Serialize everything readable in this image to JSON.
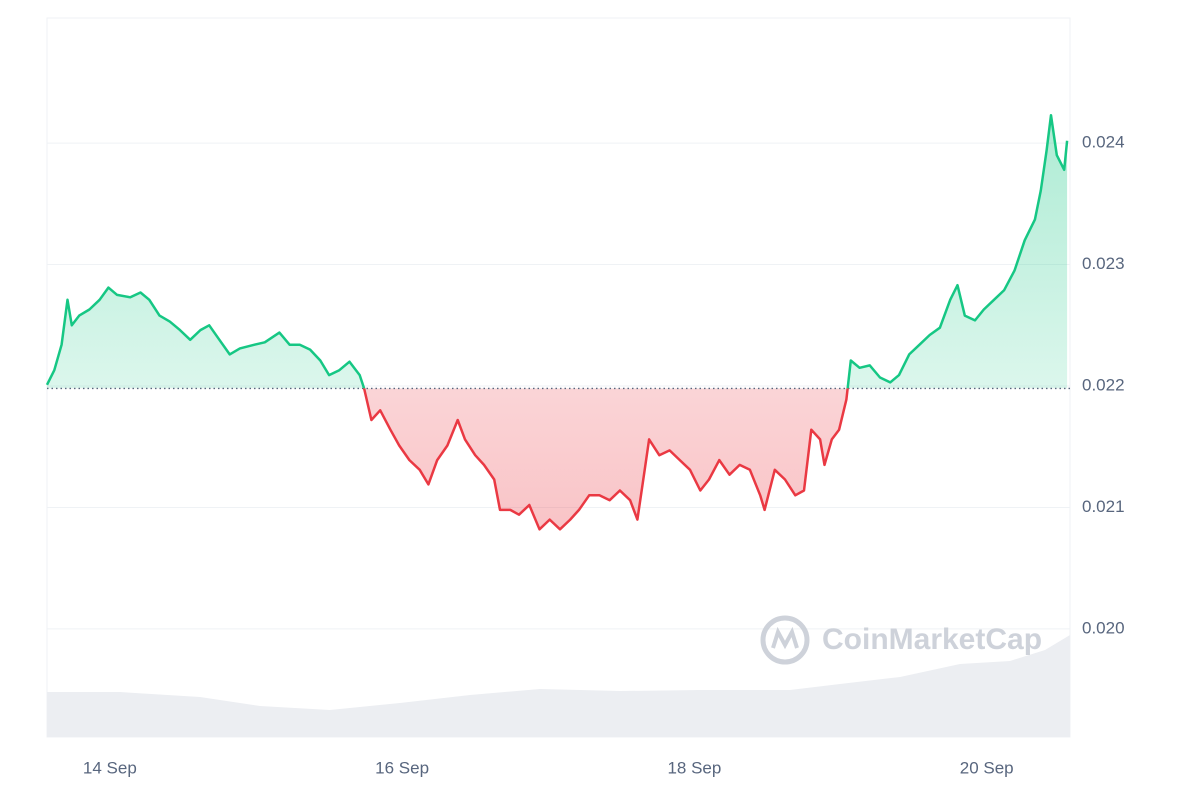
{
  "chart_data": {
    "type": "line",
    "x": [
      13.57,
      13.62,
      13.67,
      13.71,
      13.74,
      13.79,
      13.86,
      13.93,
      13.99,
      14.05,
      14.14,
      14.21,
      14.27,
      14.34,
      14.41,
      14.48,
      14.55,
      14.62,
      14.68,
      14.75,
      14.82,
      14.89,
      14.99,
      15.06,
      15.16,
      15.23,
      15.3,
      15.37,
      15.44,
      15.5,
      15.57,
      15.64,
      15.71,
      15.74,
      15.79,
      15.85,
      15.92,
      15.98,
      16.05,
      16.12,
      16.18,
      16.24,
      16.31,
      16.38,
      16.43,
      16.5,
      16.56,
      16.63,
      16.67,
      16.74,
      16.8,
      16.87,
      16.94,
      17.01,
      17.08,
      17.15,
      17.21,
      17.28,
      17.35,
      17.42,
      17.49,
      17.56,
      17.61,
      17.66,
      17.69,
      17.76,
      17.83,
      17.9,
      17.97,
      18.04,
      18.1,
      18.17,
      18.24,
      18.31,
      18.38,
      18.45,
      18.48,
      18.55,
      18.62,
      18.69,
      18.75,
      18.8,
      18.86,
      18.89,
      18.94,
      18.99,
      19.04,
      19.07,
      19.13,
      19.2,
      19.27,
      19.34,
      19.4,
      19.47,
      19.54,
      19.61,
      19.68,
      19.75,
      19.8,
      19.85,
      19.92,
      19.98,
      20.05,
      20.12,
      20.19,
      20.26,
      20.33,
      20.37,
      20.41,
      20.44,
      20.48,
      20.53,
      20.55
    ],
    "values": [
      0.02201,
      0.02213,
      0.02234,
      0.02271,
      0.0225,
      0.02258,
      0.02263,
      0.02271,
      0.02281,
      0.02275,
      0.02273,
      0.02277,
      0.02271,
      0.02258,
      0.02253,
      0.02246,
      0.02238,
      0.02246,
      0.0225,
      0.02238,
      0.02226,
      0.02231,
      0.02234,
      0.02236,
      0.02244,
      0.02234,
      0.02234,
      0.0223,
      0.02221,
      0.02209,
      0.02213,
      0.0222,
      0.02209,
      0.02198,
      0.02172,
      0.0218,
      0.02164,
      0.02151,
      0.02139,
      0.02131,
      0.02119,
      0.02139,
      0.02151,
      0.02172,
      0.02156,
      0.02143,
      0.02135,
      0.02123,
      0.02098,
      0.02098,
      0.02094,
      0.02102,
      0.02082,
      0.0209,
      0.02082,
      0.0209,
      0.02098,
      0.0211,
      0.0211,
      0.02106,
      0.02114,
      0.02106,
      0.0209,
      0.02131,
      0.02156,
      0.02143,
      0.02147,
      0.02139,
      0.02131,
      0.02114,
      0.02123,
      0.02139,
      0.02127,
      0.02135,
      0.02131,
      0.0211,
      0.02098,
      0.02131,
      0.02123,
      0.0211,
      0.02114,
      0.02164,
      0.02156,
      0.02135,
      0.02156,
      0.02164,
      0.02189,
      0.02221,
      0.02215,
      0.02217,
      0.02207,
      0.02203,
      0.02209,
      0.02226,
      0.02234,
      0.02242,
      0.02248,
      0.02271,
      0.02283,
      0.02258,
      0.02254,
      0.02263,
      0.02271,
      0.02279,
      0.02295,
      0.0232,
      0.02337,
      0.02361,
      0.02394,
      0.02423,
      0.0239,
      0.02378,
      0.02402
    ],
    "baseline": 0.02198,
    "up_color": "#16c784",
    "down_color": "#ea3943",
    "xlim": [
      13.57,
      20.57
    ],
    "xticks": [
      {
        "value": 14,
        "label": "14 Sep"
      },
      {
        "value": 16,
        "label": "16 Sep"
      },
      {
        "value": 18,
        "label": "18 Sep"
      },
      {
        "value": 20,
        "label": "20 Sep"
      }
    ],
    "ylim": [
      0.01911,
      0.02503
    ],
    "yticks": [
      {
        "value": 0.02,
        "label": "0.020"
      },
      {
        "value": 0.021,
        "label": "0.021"
      },
      {
        "value": 0.022,
        "label": "0.022"
      },
      {
        "value": 0.023,
        "label": "0.023"
      },
      {
        "value": 0.024,
        "label": "0.024"
      }
    ],
    "grid": true,
    "watermark": "CoinMarketCap"
  }
}
